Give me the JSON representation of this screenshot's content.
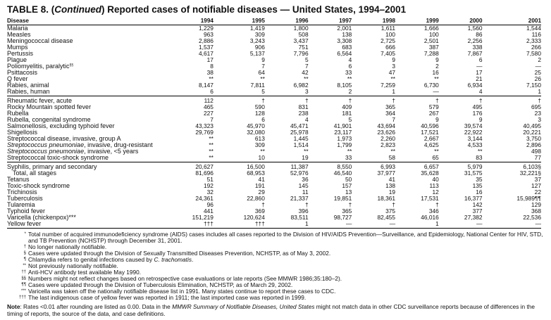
{
  "title": {
    "prefix": "TABLE 8. (",
    "italic": "Continued",
    "suffix": ") Reported cases of notifiable diseases — United States, 1994–2001"
  },
  "header": [
    "Disease",
    "1994",
    "1995",
    "1996",
    "1997",
    "1998",
    "1999",
    "2000",
    "2001"
  ],
  "groups": [
    [
      {
        "name": "Malaria",
        "values": [
          "1,229",
          "1,419",
          "1,800",
          "2,001",
          "1,611",
          "1,666",
          "1,560",
          "1,544"
        ]
      },
      {
        "name": "Measles",
        "values": [
          "963",
          "309",
          "508",
          "138",
          "100",
          "100",
          "86",
          "116"
        ]
      },
      {
        "name": "Meningococcal disease",
        "values": [
          "2,886",
          "3,243",
          "3,437",
          "3,308",
          "2,725",
          "2,501",
          "2,256",
          "2,333"
        ]
      },
      {
        "name": "Mumps",
        "values": [
          "1,537",
          "906",
          "751",
          "683",
          "666",
          "387",
          "338",
          "266"
        ]
      },
      {
        "name": "Pertussis",
        "values": [
          "4,617",
          "5,137",
          "7,796",
          "6,564",
          "7,405",
          "7,288",
          "7,867",
          "7,580"
        ]
      },
      {
        "name": "Plague",
        "values": [
          "17",
          "9",
          "5",
          "4",
          "9",
          "9",
          "6",
          "2"
        ]
      },
      {
        "name": "Poliomyelitis, paralytic",
        "sup": "§§",
        "values": [
          "8",
          "7",
          "7",
          "6",
          "3",
          "2",
          "—",
          "—"
        ]
      },
      {
        "name": "Psittacosis",
        "values": [
          "38",
          "64",
          "42",
          "33",
          "47",
          "16",
          "17",
          "25"
        ]
      },
      {
        "name": "Q fever",
        "values": [
          "**",
          "**",
          "**",
          "**",
          "**",
          "**",
          "21",
          "26"
        ]
      },
      {
        "name": "Rabies, animal",
        "values": [
          "8,147",
          "7,811",
          "6,982",
          "8,105",
          "7,259",
          "6,730",
          "6,934",
          "7,150"
        ]
      },
      {
        "name": "Rabies, human",
        "values": [
          "6",
          "5",
          "3",
          "2",
          "1",
          "—",
          "4",
          "1"
        ]
      }
    ],
    [
      {
        "name": "Rheumatic fever, acute",
        "values": [
          "112",
          "†",
          "†",
          "†",
          "†",
          "†",
          "†",
          "†"
        ]
      },
      {
        "name": "Rocky Mountain spotted fever",
        "values": [
          "465",
          "590",
          "831",
          "409",
          "365",
          "579",
          "495",
          "695"
        ]
      },
      {
        "name": "Rubella",
        "values": [
          "227",
          "128",
          "238",
          "181",
          "364",
          "267",
          "176",
          "23"
        ]
      },
      {
        "name": "Rubella, congenital syndrome",
        "values": [
          "7",
          "6",
          "4",
          "5",
          "7",
          "9",
          "9",
          "3"
        ]
      },
      {
        "name": "Salmonellosis, excluding typhoid fever",
        "values": [
          "43,323",
          "45,970",
          "45,471",
          "41,901",
          "43,694",
          "40,596",
          "39,574",
          "40,495"
        ]
      },
      {
        "name": "Shigellosis",
        "values": [
          "29,769",
          "32,080",
          "25,978",
          "23,117",
          "23,626",
          "17,521",
          "22,922",
          "20,221"
        ]
      },
      {
        "name": "Streptococcal disease, invasive, group A",
        "values": [
          "**",
          "613",
          "1,445",
          "1,973",
          "2,260",
          "2,667",
          "3,144",
          "3,750"
        ]
      },
      {
        "em": "Streptococcus pneumoniae",
        "name": ", invasive, drug-resistant",
        "values": [
          "**",
          "309",
          "1,514",
          "1,799",
          "2,823",
          "4,625",
          "4,533",
          "2,896"
        ]
      },
      {
        "em": "Streptococcus pneumoniae",
        "name": ", invasive, <5 years",
        "values": [
          "**",
          "**",
          "**",
          "**",
          "**",
          "**",
          "**",
          "498"
        ]
      },
      {
        "name": "Streptococcal toxic-shock syndrome",
        "values": [
          "**",
          "10",
          "19",
          "33",
          "58",
          "65",
          "83",
          "77"
        ]
      }
    ],
    [
      {
        "name": "Syphilis, primary and secondary",
        "values": [
          "20,627",
          "16,500",
          "11,387",
          "8,550",
          "6,993",
          "6,657",
          "5,979",
          "6,103§"
        ]
      },
      {
        "name": "Total, all stages",
        "indent": true,
        "values": [
          "81,696",
          "68,953",
          "52,976",
          "46,540",
          "37,977",
          "35,628",
          "31,575",
          "32,221§"
        ]
      },
      {
        "name": "Tetanus",
        "values": [
          "51",
          "41",
          "36",
          "50",
          "41",
          "40",
          "35",
          "37"
        ]
      },
      {
        "name": "Toxic-shock syndrome",
        "values": [
          "192",
          "191",
          "145",
          "157",
          "138",
          "113",
          "135",
          "127"
        ]
      },
      {
        "name": "Trichinosis",
        "values": [
          "32",
          "29",
          "11",
          "13",
          "19",
          "12",
          "16",
          "22"
        ]
      },
      {
        "name": "Tuberculosis",
        "values": [
          "24,361",
          "22,860",
          "21,337",
          "19,851",
          "18,361",
          "17,531",
          "16,377",
          "15,989¶¶"
        ]
      },
      {
        "name": "Tularemia",
        "values": [
          "96",
          "†",
          "†",
          "†",
          "†",
          "†",
          "142",
          "129"
        ]
      },
      {
        "name": "Typhoid fever",
        "values": [
          "441",
          "369",
          "396",
          "365",
          "375",
          "346",
          "377",
          "368"
        ]
      },
      {
        "name": "Varicella (chickenpox)***",
        "values": [
          "151,219",
          "120,624",
          "83,511",
          "98,727",
          "82,455",
          "46,016",
          "27,382",
          "22,536"
        ]
      },
      {
        "name": "Yellow fever",
        "values": [
          "†††",
          "†††",
          "1",
          "—",
          "—",
          "1",
          "—",
          "—"
        ]
      }
    ]
  ],
  "footnotes": [
    {
      "mark": "*",
      "text": "Total number of acquired immunodeficiency syndrome (AIDS) cases includes all cases reported to the Division of HIV/AIDS Prevention—Surveillance, and Epidemiology, National Center for HIV, STD, and TB Prevention (NCHSTP) through December 31, 2001."
    },
    {
      "mark": "†",
      "text": "No longer nationally notifiable."
    },
    {
      "mark": "§",
      "text": "Cases were updated through the Division of Sexually Transmitted Diseases Prevention, NCHSTP, as of  May 3, 2002."
    },
    {
      "mark": "¶",
      "text": "Chlamydia refers to genital infections caused by ",
      "em": "C. trachomatis",
      "after": "."
    },
    {
      "mark": "**",
      "text": "Not previously nationally notifiable."
    },
    {
      "mark": "††",
      "text": "Anti-HCV antibody test available May 1990."
    },
    {
      "mark": "§§",
      "text": "Numbers might not reflect changes based on retrospective case evaluations or late reports (See MMWR 1986;35:180–2)."
    },
    {
      "mark": "¶¶",
      "text": "Cases were updated through the Division of Tuberculosis Elimination, NCHSTP, as of March 29, 2002."
    },
    {
      "mark": "***",
      "text": "Varicella was taken off the nationally notifiable disease list in 1991.  Many states continue to report these cases to CDC."
    },
    {
      "mark": "†††",
      "text": "The last indigenous case of yellow fever was reported in 1911; the last imported case was reported in 1999."
    }
  ],
  "note": {
    "label": "Note",
    "t1": ": Rates <0.01 after rounding are listed as 0.00. Data in the ",
    "em": "MMWR Summary of Notifiable Diseases, United States",
    "t2": " might not match data in other CDC surveillance reports because of differences in the timing of reports, the source of the data, and case definitions."
  }
}
